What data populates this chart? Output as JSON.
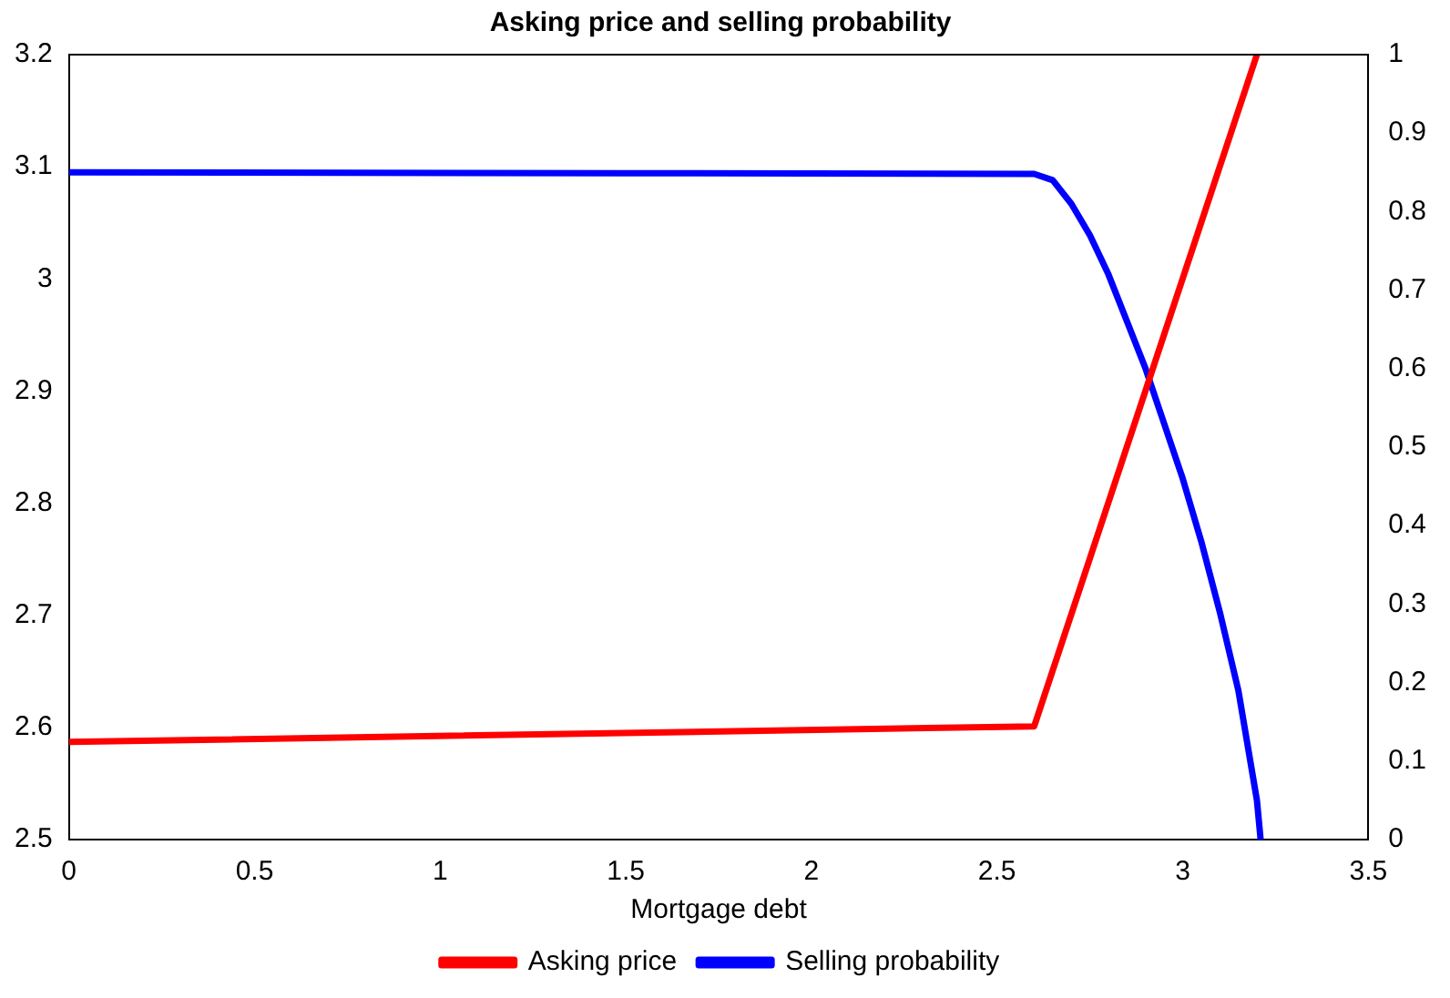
{
  "chart_data": {
    "type": "line",
    "title": "Asking price and selling probability",
    "xlabel": "Mortgage debt",
    "xlim": [
      0,
      3.5
    ],
    "xticks": [
      0,
      0.5,
      1,
      1.5,
      2,
      2.5,
      3,
      3.5
    ],
    "ylim": [
      2.5,
      3.2
    ],
    "yticks": [
      2.5,
      2.6,
      2.7,
      2.8,
      2.9,
      3,
      3.1,
      3.2
    ],
    "y2lim": [
      0,
      1
    ],
    "y2ticks": [
      0,
      0.1,
      0.2,
      0.3,
      0.4,
      0.5,
      0.6,
      0.7,
      0.8,
      0.9,
      1
    ],
    "legend": "bottom",
    "marker": "none",
    "series": [
      {
        "name": "Asking price",
        "color": "#ff0000",
        "x": [
          0,
          2.6,
          3.2
        ],
        "values": [
          2.587,
          2.601,
          3.2
        ]
      },
      {
        "name": "Selling probability",
        "color": "#0000ff",
        "axis": "y2",
        "x": [
          0,
          1.5,
          2.6,
          2.65,
          2.7,
          2.75,
          2.8,
          2.85,
          2.9,
          2.95,
          3,
          3.05,
          3.1,
          3.15,
          3.2,
          3.21
        ],
        "values": [
          0.85,
          0.849,
          0.848,
          0.84,
          0.81,
          0.77,
          0.72,
          0.66,
          0.6,
          0.53,
          0.46,
          0.38,
          0.29,
          0.19,
          0.05,
          0
        ]
      }
    ]
  }
}
